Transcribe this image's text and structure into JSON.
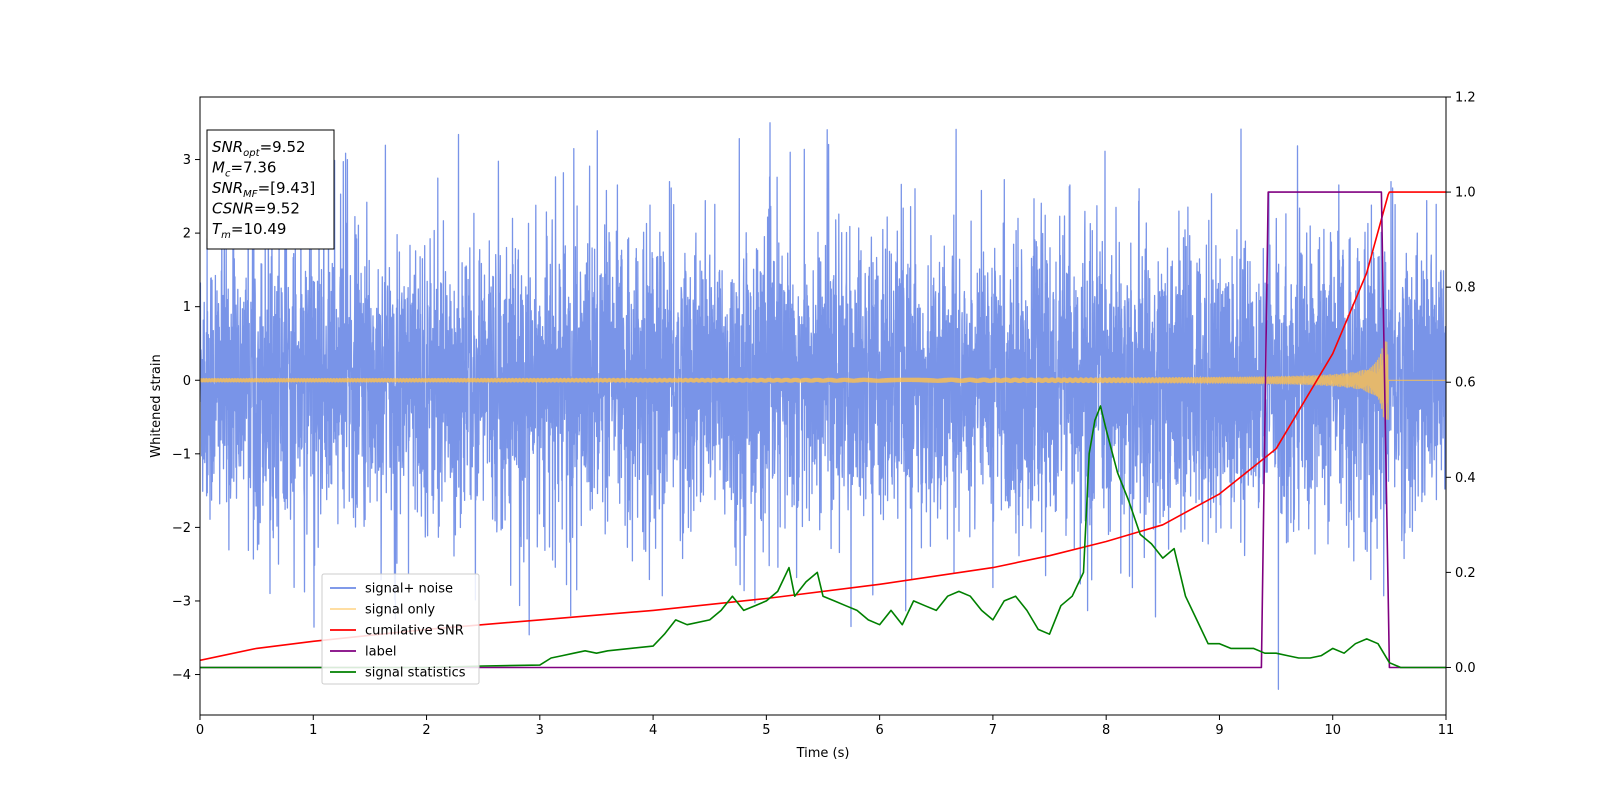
{
  "chart_data": {
    "type": "line",
    "xlabel": "Time (s)",
    "ylabel": "Whitened strain",
    "xlim": [
      0,
      11
    ],
    "ylim": [
      -4.55,
      3.85
    ],
    "y2lim": [
      -0.1,
      1.2
    ],
    "xticks": [
      0,
      1,
      2,
      3,
      4,
      5,
      6,
      7,
      8,
      9,
      10,
      11
    ],
    "yticks": [
      -4,
      -3,
      -2,
      -1,
      0,
      1,
      2,
      3
    ],
    "y2ticks": [
      0.0,
      0.2,
      0.4,
      0.6,
      0.8,
      1.0,
      1.2
    ],
    "xtick_labels": [
      "0",
      "1",
      "2",
      "3",
      "4",
      "5",
      "6",
      "7",
      "8",
      "9",
      "10",
      "11"
    ],
    "ytick_labels": [
      "−4",
      "−3",
      "−2",
      "−1",
      "0",
      "1",
      "2",
      "3"
    ],
    "y2tick_labels": [
      "0.0",
      "0.2",
      "0.4",
      "0.6",
      "0.8",
      "1.0",
      "1.2"
    ],
    "grid": false,
    "legend_position": "lower-left",
    "annotation": [
      {
        "var": "SNR",
        "sub": "opt",
        "value": "=9.52"
      },
      {
        "var": "M",
        "sub": "c",
        "value": "=7.36"
      },
      {
        "var": "SNR",
        "sub": "MF",
        "value": "=[9.43]"
      },
      {
        "var": "CSNR",
        "sub": "",
        "value": "=9.52"
      },
      {
        "var": "T",
        "sub": "m",
        "value": "=10.49"
      }
    ],
    "series": [
      {
        "name": "signal+ noise",
        "axis": "left",
        "color": "#6e8be6",
        "kind": "noise",
        "amplitude_envelope": 2.9,
        "x_range": [
          0,
          11
        ]
      },
      {
        "name": "signal only",
        "axis": "left",
        "color": "#ffc04d",
        "kind": "chirp",
        "merger_time": 10.49,
        "peak_amplitude": 0.55,
        "x_range": [
          0,
          11
        ]
      },
      {
        "name": "cumilative SNR",
        "axis": "right",
        "color": "#ff0000",
        "x": [
          0,
          0.5,
          1,
          2,
          3,
          4,
          5,
          6,
          7,
          7.5,
          8,
          8.5,
          9,
          9.5,
          10,
          10.3,
          10.49,
          10.5,
          11
        ],
        "values": [
          0.015,
          0.04,
          0.055,
          0.08,
          0.1,
          0.12,
          0.145,
          0.175,
          0.21,
          0.235,
          0.265,
          0.3,
          0.365,
          0.46,
          0.66,
          0.83,
          0.995,
          1.0,
          1.0
        ]
      },
      {
        "name": "label",
        "axis": "right",
        "color": "#800080",
        "x": [
          0,
          9.37,
          9.43,
          10.43,
          10.5,
          11
        ],
        "values": [
          0.0,
          0.0,
          1.0,
          1.0,
          0.0,
          0.0
        ]
      },
      {
        "name": "signal statistics",
        "axis": "right",
        "color": "#008000",
        "x": [
          0,
          1,
          2,
          2.5,
          3,
          3.1,
          3.2,
          3.3,
          3.4,
          3.5,
          3.6,
          3.8,
          4,
          4.1,
          4.2,
          4.3,
          4.5,
          4.6,
          4.7,
          4.8,
          4.9,
          5,
          5.1,
          5.2,
          5.25,
          5.35,
          5.45,
          5.5,
          5.6,
          5.7,
          5.8,
          5.9,
          6.0,
          6.1,
          6.2,
          6.3,
          6.4,
          6.5,
          6.6,
          6.7,
          6.8,
          6.9,
          7.0,
          7.1,
          7.2,
          7.3,
          7.4,
          7.5,
          7.6,
          7.7,
          7.8,
          7.85,
          7.9,
          7.95,
          8.0,
          8.1,
          8.2,
          8.3,
          8.4,
          8.5,
          8.6,
          8.7,
          8.8,
          8.9,
          9.0,
          9.1,
          9.2,
          9.3,
          9.4,
          9.5,
          9.6,
          9.7,
          9.8,
          9.9,
          10.0,
          10.1,
          10.2,
          10.3,
          10.4,
          10.5,
          10.6,
          11
        ],
        "values": [
          0.0,
          0.0,
          0.0,
          0.003,
          0.005,
          0.02,
          0.025,
          0.03,
          0.035,
          0.03,
          0.035,
          0.04,
          0.045,
          0.07,
          0.1,
          0.09,
          0.1,
          0.12,
          0.15,
          0.12,
          0.13,
          0.14,
          0.16,
          0.21,
          0.15,
          0.18,
          0.2,
          0.15,
          0.14,
          0.13,
          0.12,
          0.1,
          0.09,
          0.12,
          0.09,
          0.14,
          0.13,
          0.12,
          0.15,
          0.16,
          0.15,
          0.12,
          0.1,
          0.14,
          0.15,
          0.12,
          0.08,
          0.07,
          0.13,
          0.15,
          0.2,
          0.45,
          0.52,
          0.55,
          0.5,
          0.41,
          0.35,
          0.28,
          0.26,
          0.23,
          0.25,
          0.15,
          0.1,
          0.05,
          0.05,
          0.04,
          0.04,
          0.04,
          0.03,
          0.03,
          0.025,
          0.02,
          0.02,
          0.025,
          0.04,
          0.03,
          0.05,
          0.06,
          0.05,
          0.01,
          0.0,
          0.0
        ]
      }
    ]
  },
  "legend": {
    "items": [
      {
        "label": "signal+ noise",
        "color": "#6e8be6"
      },
      {
        "label": "signal only",
        "color": "#ffc04d"
      },
      {
        "label": "cumilative SNR",
        "color": "#ff0000"
      },
      {
        "label": "label",
        "color": "#800080"
      },
      {
        "label": "signal statistics",
        "color": "#008000"
      }
    ]
  }
}
